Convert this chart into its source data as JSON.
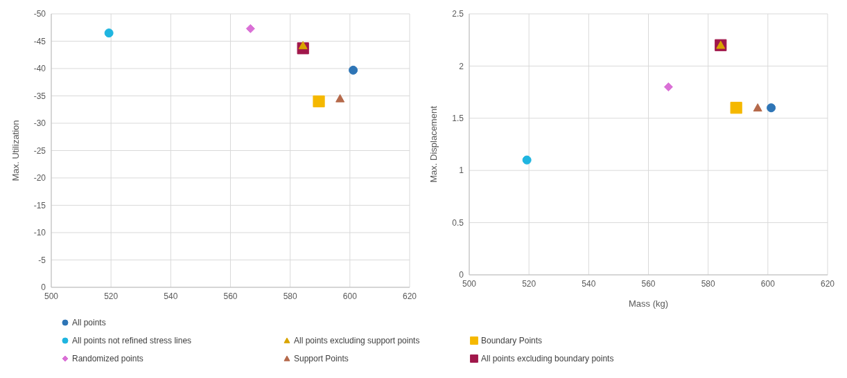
{
  "chart_data": [
    {
      "type": "scatter",
      "ylabel": "Max. Utilization",
      "xlim": [
        500,
        620
      ],
      "xticks": [
        500,
        520,
        540,
        560,
        580,
        600,
        620
      ],
      "ylim": [
        0,
        -50
      ],
      "yticks": [
        0,
        -5,
        -10,
        -15,
        -20,
        -25,
        -30,
        -35,
        -40,
        -45,
        -50
      ],
      "grid": true,
      "legend": "bottom",
      "series": [
        {
          "name": "All points",
          "color": "#2e75b6",
          "marker": "circle",
          "x": [
            601.1
          ],
          "values": [
            -39.7
          ]
        },
        {
          "name": "All points not refined stress lines",
          "color": "#1fb5e0",
          "marker": "circle",
          "x": [
            519.3
          ],
          "values": [
            -46.5
          ]
        },
        {
          "name": "All points excluding support points",
          "color": "#d9a400",
          "marker": "triangle",
          "x": [
            584.3
          ],
          "values": [
            -44.2
          ]
        },
        {
          "name": "Boundary Points",
          "color": "#f5b800",
          "marker": "square",
          "x": [
            589.6
          ],
          "values": [
            -34.0
          ]
        },
        {
          "name": "Randomized points",
          "color": "#da70d6",
          "marker": "diamond",
          "x": [
            566.7
          ],
          "values": [
            -47.3
          ]
        },
        {
          "name": "Support Points",
          "color": "#b5694a",
          "marker": "triangle",
          "x": [
            596.7
          ],
          "values": [
            -34.5
          ]
        },
        {
          "name": "All points excluding boundary points",
          "color": "#a0174a",
          "marker": "square",
          "x": [
            584.3
          ],
          "values": [
            -43.7
          ]
        }
      ]
    },
    {
      "type": "scatter",
      "xlabel": "Mass (kg)",
      "ylabel": "Max. Displacement",
      "xlim": [
        500,
        620
      ],
      "xticks": [
        500,
        520,
        540,
        560,
        580,
        600,
        620
      ],
      "ylim": [
        0,
        2.5
      ],
      "yticks": [
        0,
        0.5,
        1,
        1.5,
        2,
        2.5
      ],
      "grid": true,
      "series": [
        {
          "color": "#2e75b6",
          "marker": "circle",
          "x": [
            601.1
          ],
          "values": [
            1.6
          ]
        },
        {
          "color": "#1fb5e0",
          "marker": "circle",
          "x": [
            519.3
          ],
          "values": [
            1.1
          ]
        },
        {
          "color": "#d9a400",
          "marker": "triangle",
          "x": [
            584.2
          ],
          "values": [
            2.2
          ]
        },
        {
          "color": "#f5b800",
          "marker": "square",
          "x": [
            589.4
          ],
          "values": [
            1.6
          ]
        },
        {
          "color": "#da70d6",
          "marker": "diamond",
          "x": [
            566.7
          ],
          "values": [
            1.8
          ]
        },
        {
          "color": "#b5694a",
          "marker": "triangle",
          "x": [
            596.6
          ],
          "values": [
            1.6
          ]
        },
        {
          "color": "#a0174a",
          "marker": "square",
          "x": [
            584.2
          ],
          "values": [
            2.2
          ]
        }
      ]
    }
  ]
}
